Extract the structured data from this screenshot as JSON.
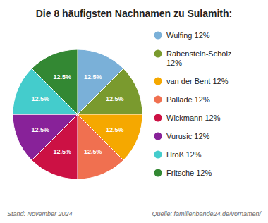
{
  "chart_data": {
    "type": "pie",
    "title": "Die 8 häufigsten Nachnamen zu Sulamith:",
    "categories": [
      "Wulfing 12%",
      "Rabenstein-Scholz\n12%",
      "van der Bent 12%",
      "Pallade 12%",
      "Wickmann 12%",
      "Vurusic 12%",
      "Hroß 12%",
      "Fritsche 12%"
    ],
    "values": [
      12.5,
      12.5,
      12.5,
      12.5,
      12.5,
      12.5,
      12.5,
      12.5
    ],
    "value_labels": [
      "12.5%",
      "12.5%",
      "12.5%",
      "12.5%",
      "12.5%",
      "12.5%",
      "12.5%",
      "12.5%"
    ],
    "data_labels": true,
    "colors": [
      "#7ab0d8",
      "#7a9a2e",
      "#f5a800",
      "#f07050",
      "#cc1144",
      "#882299",
      "#44cccc",
      "#338833"
    ],
    "legend": "right",
    "annotations": [
      "Stand: November 2024",
      "Quelle: familienbande24.de/vornamen/"
    ]
  }
}
